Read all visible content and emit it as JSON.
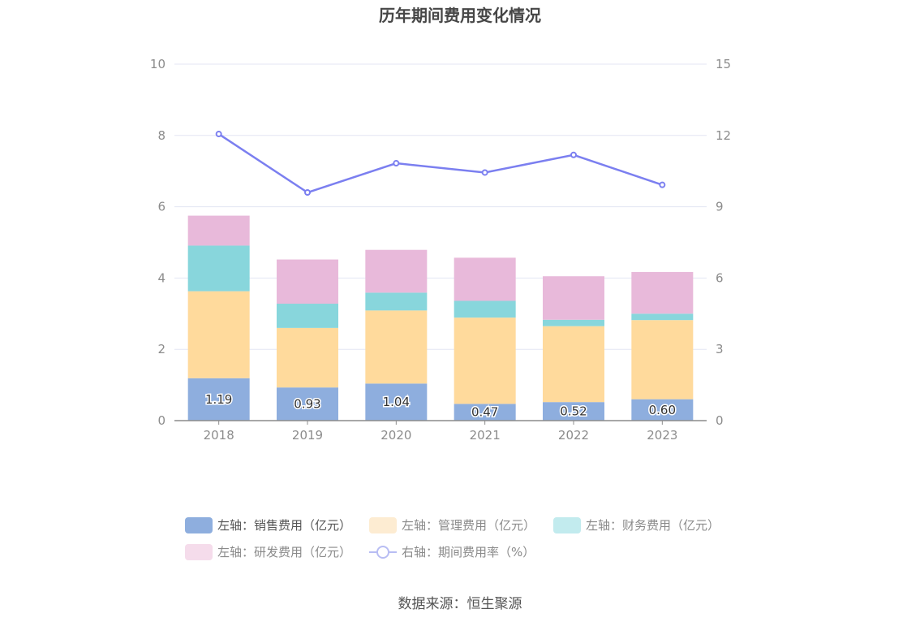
{
  "chart_data": {
    "type": "bar",
    "stacked": true,
    "title": "历年期间费用变化情况",
    "categories": [
      "2018",
      "2019",
      "2020",
      "2021",
      "2022",
      "2023"
    ],
    "left_axis": {
      "min": 0,
      "max": 10,
      "ticks": [
        "0",
        "2",
        "4",
        "6",
        "8",
        "10"
      ]
    },
    "right_axis": {
      "min": 0,
      "max": 15,
      "ticks": [
        "0",
        "3",
        "6",
        "9",
        "12",
        "15"
      ]
    },
    "series": [
      {
        "name": "左轴：销售费用（亿元）",
        "axis": "left",
        "type": "bar",
        "color": "#8eaede",
        "values": [
          1.19,
          0.93,
          1.04,
          0.47,
          0.52,
          0.6
        ],
        "labels": [
          "1.19",
          "0.93",
          "1.04",
          "0.47",
          "0.52",
          "0.60"
        ]
      },
      {
        "name": "左轴：管理费用（亿元）",
        "axis": "left",
        "type": "bar",
        "color": "#ffda9c",
        "values": [
          2.44,
          1.67,
          2.05,
          2.42,
          2.13,
          2.22
        ]
      },
      {
        "name": "左轴：财务费用（亿元）",
        "axis": "left",
        "type": "bar",
        "color": "#88d6dc",
        "values": [
          1.28,
          0.68,
          0.5,
          0.47,
          0.18,
          0.18
        ]
      },
      {
        "name": "左轴：研发费用（亿元）",
        "axis": "left",
        "type": "bar",
        "color": "#e8b9da",
        "values": [
          0.84,
          1.24,
          1.2,
          1.21,
          1.22,
          1.17
        ]
      },
      {
        "name": "右轴：期间费用率（%）",
        "axis": "right",
        "type": "line",
        "color": "#7b7ff0",
        "values": [
          12.06,
          9.6,
          10.83,
          10.44,
          11.18,
          9.92
        ]
      }
    ]
  },
  "legend": [
    {
      "label": "左轴：销售费用（亿元）",
      "swatch_color": "#8eaede"
    },
    {
      "label": "左轴：管理费用（亿元）",
      "swatch_color": "#fdecd2"
    },
    {
      "label": "左轴：财务费用（亿元）",
      "swatch_color": "#c2ebee"
    },
    {
      "label": "左轴：研发费用（亿元）",
      "swatch_color": "#f5dceb"
    },
    {
      "label": "右轴：期间费用率（%）",
      "swatch_color": "#b8bdf3"
    }
  ],
  "source": "数据来源：恒生聚源"
}
